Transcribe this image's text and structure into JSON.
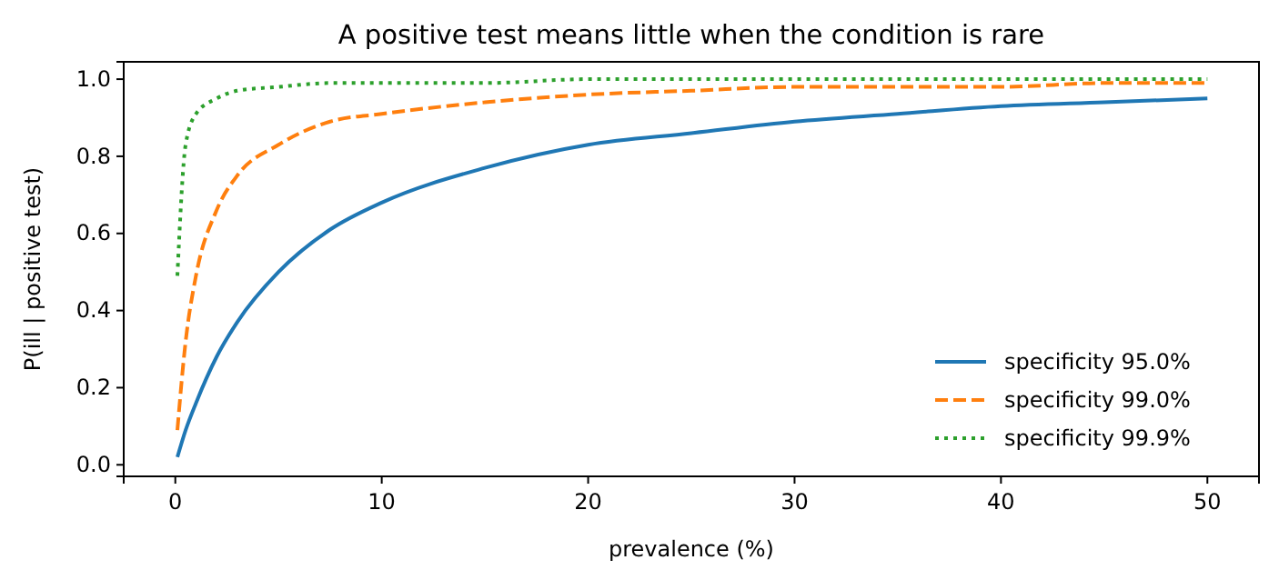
{
  "chart_data": {
    "type": "line",
    "title": "A positive test means little when the condition is rare",
    "xlabel": "prevalence (%)",
    "ylabel": "P(ill | positive test)",
    "x": [
      0.1,
      0.5,
      1,
      2,
      3,
      5,
      7.5,
      10,
      15,
      20,
      25,
      30,
      35,
      40,
      45,
      50
    ],
    "series": [
      {
        "name": "specificity 95.0%",
        "color": "#1f77b4",
        "line_style": "solid",
        "values": [
          0.02,
          0.09,
          0.16,
          0.28,
          0.37,
          0.5,
          0.61,
          0.68,
          0.77,
          0.83,
          0.86,
          0.89,
          0.91,
          0.93,
          0.94,
          0.95
        ]
      },
      {
        "name": "specificity 99.0%",
        "color": "#ff7f0e",
        "line_style": "dashed",
        "values": [
          0.09,
          0.32,
          0.49,
          0.66,
          0.75,
          0.83,
          0.89,
          0.91,
          0.94,
          0.96,
          0.97,
          0.98,
          0.98,
          0.98,
          0.99,
          0.99
        ]
      },
      {
        "name": "specificity 99.9%",
        "color": "#2ca02c",
        "line_style": "dotted",
        "values": [
          0.49,
          0.83,
          0.91,
          0.95,
          0.97,
          0.98,
          0.99,
          0.99,
          0.99,
          1.0,
          1.0,
          1.0,
          1.0,
          1.0,
          1.0,
          1.0
        ]
      }
    ],
    "xlim": [
      -2.5,
      52.5
    ],
    "ylim": [
      -0.03,
      1.045
    ],
    "xticks": [
      0,
      10,
      20,
      30,
      40,
      50
    ],
    "yticks": [
      {
        "value": 0,
        "label": "0.0"
      },
      {
        "value": 0.2,
        "label": "0.2"
      },
      {
        "value": 0.4,
        "label": "0.4"
      },
      {
        "value": 0.6,
        "label": "0.6"
      },
      {
        "value": 0.8,
        "label": "0.8"
      },
      {
        "value": 1,
        "label": "1.0"
      }
    ],
    "grid": false,
    "legend": "bottom right",
    "marker": "none"
  }
}
